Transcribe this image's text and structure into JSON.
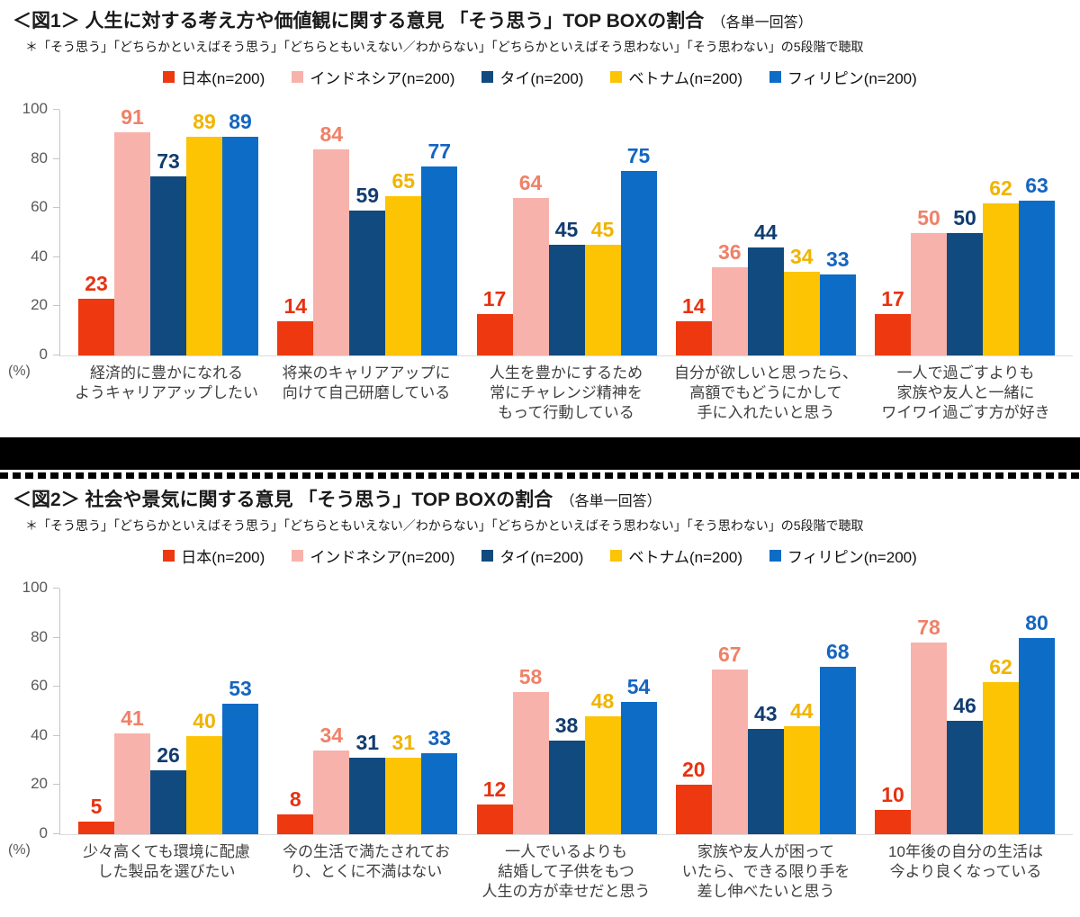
{
  "colors": {
    "series": [
      "#ee3810",
      "#f8b2ac",
      "#114a7e",
      "#fcc402",
      "#0d6cc6"
    ],
    "value_labels": [
      "#e73210",
      "#ef8168",
      "#123c71",
      "#f0b400",
      "#1565c0"
    ],
    "axis_line": "#c5c5c5",
    "baseline": "#dcdcdc",
    "axis_text": "#595959",
    "category_text": "#3f3f3f",
    "separator": "#000000"
  },
  "chart_data": [
    {
      "type": "bar",
      "title": "＜図1＞ 人生に対する考え方や価値観に関する意見 「そう思う」TOP BOXの割合",
      "title_note": "（各単一回答）",
      "subtitle": "＊「そう思う」「どちらかといえばそう思う」「どちらともいえない／わからない」「どちらかといえばそう思わない」「そう思わない」の5段階で聴取",
      "unit": "(%)",
      "ylim": [
        0,
        100
      ],
      "yticks": [
        0,
        20,
        40,
        60,
        80,
        100
      ],
      "grid": false,
      "legend_position": "top",
      "series": [
        {
          "name": "日本(n=200)",
          "values": [
            23,
            14,
            17,
            14,
            17
          ]
        },
        {
          "name": "インドネシア(n=200)",
          "values": [
            91,
            84,
            64,
            36,
            50
          ]
        },
        {
          "name": "タイ(n=200)",
          "values": [
            73,
            59,
            45,
            44,
            50
          ]
        },
        {
          "name": "ベトナム(n=200)",
          "values": [
            89,
            65,
            45,
            34,
            62
          ]
        },
        {
          "name": "フィリピン(n=200)",
          "values": [
            89,
            77,
            75,
            33,
            63
          ]
        }
      ],
      "categories": [
        [
          "経済的に豊かになれる",
          "ようキャリアアップしたい"
        ],
        [
          "将来のキャリアアップに",
          "向けて自己研磨している"
        ],
        [
          "人生を豊かにするため",
          "常にチャレンジ精神を",
          "もって行動している"
        ],
        [
          "自分が欲しいと思ったら、",
          "高額でもどうにかして",
          "手に入れたいと思う"
        ],
        [
          "一人で過ごすよりも",
          "家族や友人と一緒に",
          "ワイワイ過ごす方が好き"
        ]
      ]
    },
    {
      "type": "bar",
      "title": "＜図2＞ 社会や景気に関する意見 「そう思う」TOP BOXの割合",
      "title_note": "（各単一回答）",
      "subtitle": "＊「そう思う」「どちらかといえばそう思う」「どちらともいえない／わからない」「どちらかといえばそう思わない」「そう思わない」の5段階で聴取",
      "unit": "(%)",
      "ylim": [
        0,
        100
      ],
      "yticks": [
        0,
        20,
        40,
        60,
        80,
        100
      ],
      "grid": false,
      "legend_position": "top",
      "series": [
        {
          "name": "日本(n=200)",
          "values": [
            5,
            8,
            12,
            20,
            10
          ]
        },
        {
          "name": "インドネシア(n=200)",
          "values": [
            41,
            34,
            58,
            67,
            78
          ]
        },
        {
          "name": "タイ(n=200)",
          "values": [
            26,
            31,
            38,
            43,
            46
          ]
        },
        {
          "name": "ベトナム(n=200)",
          "values": [
            40,
            31,
            48,
            44,
            62
          ]
        },
        {
          "name": "フィリピン(n=200)",
          "values": [
            53,
            33,
            54,
            68,
            80
          ]
        }
      ],
      "categories": [
        [
          "少々高くても環境に配慮",
          "した製品を選びたい"
        ],
        [
          "今の生活で満たされてお",
          "り、とくに不満はない"
        ],
        [
          "一人でいるよりも",
          "結婚して子供をもつ",
          "人生の方が幸せだと思う"
        ],
        [
          "家族や友人が困って",
          "いたら、できる限り手を",
          "差し伸べたいと思う"
        ],
        [
          "10年後の自分の生活は",
          "今より良くなっている"
        ]
      ]
    }
  ]
}
